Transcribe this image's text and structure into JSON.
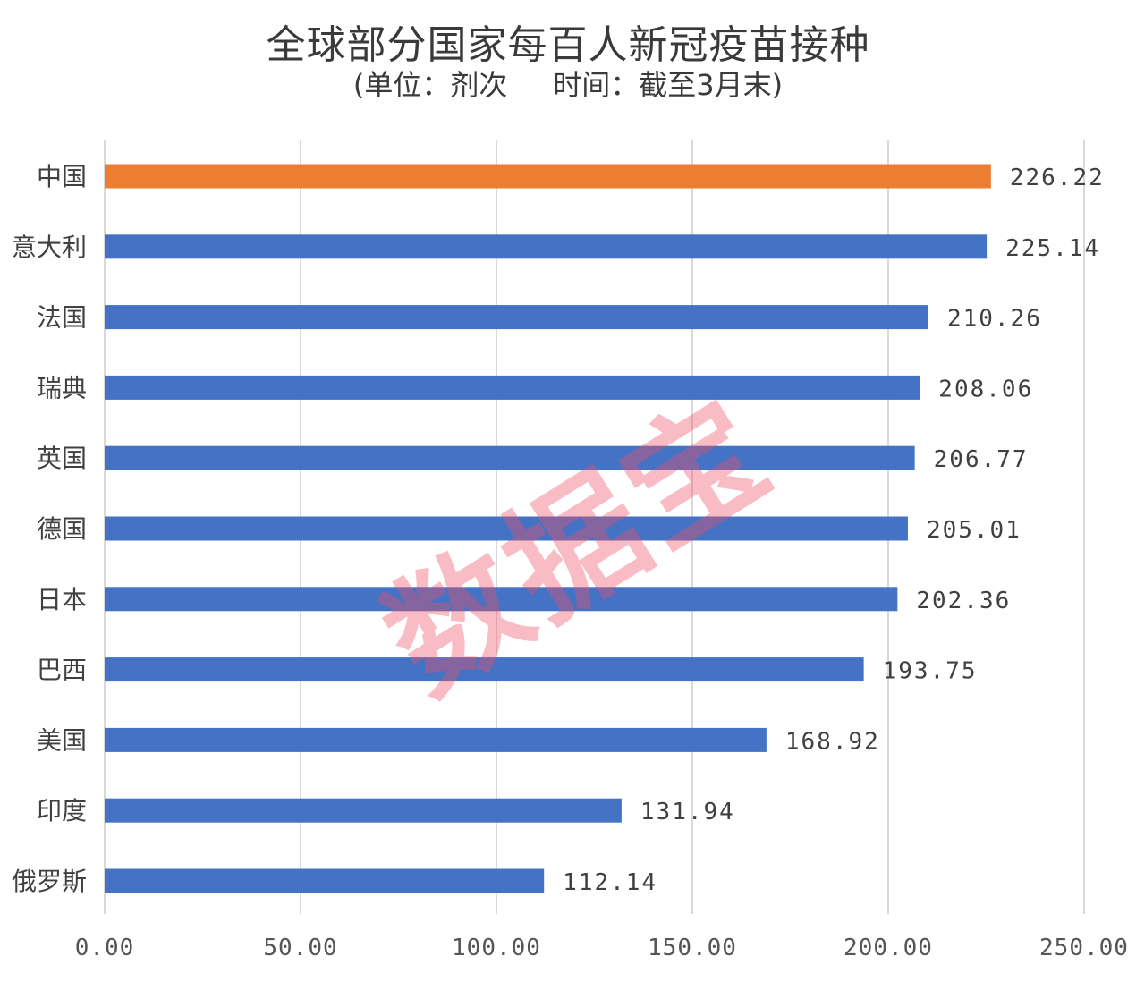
{
  "chart_data": {
    "type": "bar",
    "orientation": "horizontal",
    "title": "全球部分国家每百人新冠疫苗接种",
    "subtitle": "(单位：剂次     时间：截至3月末)",
    "categories": [
      "中国",
      "意大利",
      "法国",
      "瑞典",
      "英国",
      "德国",
      "日本",
      "巴西",
      "美国",
      "印度",
      "俄罗斯"
    ],
    "values": [
      226.22,
      225.14,
      210.26,
      208.06,
      206.77,
      205.01,
      202.36,
      193.75,
      168.92,
      131.94,
      112.14
    ],
    "value_labels": [
      "226.22",
      "225.14",
      "210.26",
      "208.06",
      "206.77",
      "205.01",
      "202.36",
      "193.75",
      "168.92",
      "131.94",
      "112.14"
    ],
    "xlim": [
      0,
      250
    ],
    "xticks": [
      0,
      50,
      100,
      150,
      200,
      250
    ],
    "xtick_labels": [
      "0.00",
      "50.00",
      "100.00",
      "150.00",
      "200.00",
      "250.00"
    ],
    "grid": true,
    "colors": {
      "default": "#4472c4",
      "highlight": "#ed7d31"
    },
    "highlight_index": 0
  },
  "watermark": "数据宝"
}
